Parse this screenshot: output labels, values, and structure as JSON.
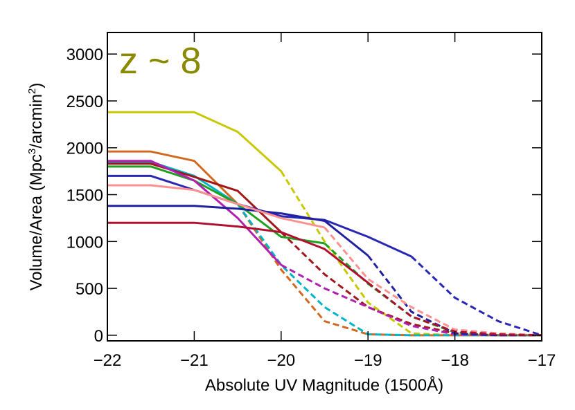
{
  "chart_data": {
    "type": "line",
    "annotation": "z ~ 8",
    "annotation_color": "#8a8a00",
    "x_label": "Absolute UV Magnitude (1500Å)",
    "y_label": [
      "Volume/Area (Mpc",
      "3",
      "/arcmin",
      "2",
      ")"
    ],
    "xlim": [
      -22,
      -17
    ],
    "ylim": [
      -60,
      3230
    ],
    "xticks": [
      {
        "value": -22,
        "label": "−22"
      },
      {
        "value": -21,
        "label": "−21"
      },
      {
        "value": -20,
        "label": "−20"
      },
      {
        "value": -19,
        "label": "−19"
      },
      {
        "value": -18,
        "label": "−18"
      },
      {
        "value": -17,
        "label": "−17"
      }
    ],
    "yticks": [
      0,
      500,
      1000,
      1500,
      2000,
      2500,
      3000
    ],
    "x": [
      -22,
      -21.5,
      -21,
      -20.5,
      -20,
      -19.5,
      -19,
      -18.5,
      -18,
      -17.5,
      -17
    ],
    "series": [
      {
        "color": "#c8c800",
        "values": [
          2380,
          2380,
          2380,
          2170,
          1750,
          null,
          null,
          null,
          null,
          null,
          null
        ],
        "dashed_values": [
          null,
          null,
          null,
          null,
          1750,
          1000,
          350,
          20,
          0,
          0,
          0
        ]
      },
      {
        "color": "#d2691e",
        "values": [
          1960,
          1960,
          1860,
          1400,
          null,
          null,
          null,
          null,
          null,
          null,
          null
        ],
        "dashed_values": [
          null,
          null,
          null,
          1400,
          700,
          150,
          10,
          0,
          0,
          0,
          0
        ]
      },
      {
        "color": "#00b4c8",
        "values": [
          1850,
          1850,
          1700,
          1400,
          null,
          null,
          null,
          null,
          null,
          null,
          null
        ],
        "dashed_values": [
          null,
          null,
          null,
          1400,
          750,
          300,
          10,
          0,
          0,
          0,
          0
        ]
      },
      {
        "color": "#a01818",
        "values": [
          1830,
          1830,
          1690,
          1540,
          1100,
          null,
          null,
          null,
          null,
          null,
          null
        ],
        "dashed_values": [
          null,
          null,
          null,
          null,
          1100,
          650,
          300,
          120,
          20,
          0,
          0
        ]
      },
      {
        "color": "#20a020",
        "values": [
          1800,
          1800,
          1650,
          1400,
          1050,
          980,
          null,
          null,
          null,
          null,
          null
        ],
        "dashed_values": [
          null,
          null,
          null,
          null,
          null,
          980,
          550,
          200,
          30,
          0,
          0
        ]
      },
      {
        "color": "#b020b0",
        "values": [
          1860,
          1860,
          1650,
          1250,
          750,
          null,
          null,
          null,
          null,
          null,
          null
        ],
        "dashed_values": [
          null,
          null,
          null,
          null,
          750,
          500,
          300,
          100,
          10,
          0,
          0
        ]
      },
      {
        "color": "#2828b4",
        "values": [
          1700,
          1700,
          1550,
          1400,
          1270,
          1230,
          1050,
          840,
          null,
          null,
          null
        ],
        "dashed_values": [
          null,
          null,
          null,
          null,
          null,
          null,
          null,
          840,
          400,
          150,
          0
        ]
      },
      {
        "color": "#2020a0",
        "values": [
          1380,
          1380,
          1380,
          1350,
          1300,
          1220,
          850,
          null,
          null,
          null,
          null
        ],
        "dashed_values": [
          null,
          null,
          null,
          null,
          null,
          null,
          850,
          250,
          20,
          0,
          0
        ]
      },
      {
        "color": "#ff9090",
        "values": [
          1600,
          1600,
          1550,
          1400,
          1250,
          1150,
          null,
          null,
          null,
          null,
          null
        ],
        "dashed_values": [
          null,
          null,
          null,
          null,
          null,
          1150,
          600,
          300,
          60,
          20,
          0
        ]
      },
      {
        "color": "#b01030",
        "values": [
          1200,
          1200,
          1200,
          1160,
          1100,
          920,
          560,
          null,
          null,
          null,
          null
        ],
        "dashed_values": [
          null,
          null,
          null,
          null,
          null,
          null,
          560,
          200,
          40,
          10,
          0
        ]
      }
    ]
  }
}
